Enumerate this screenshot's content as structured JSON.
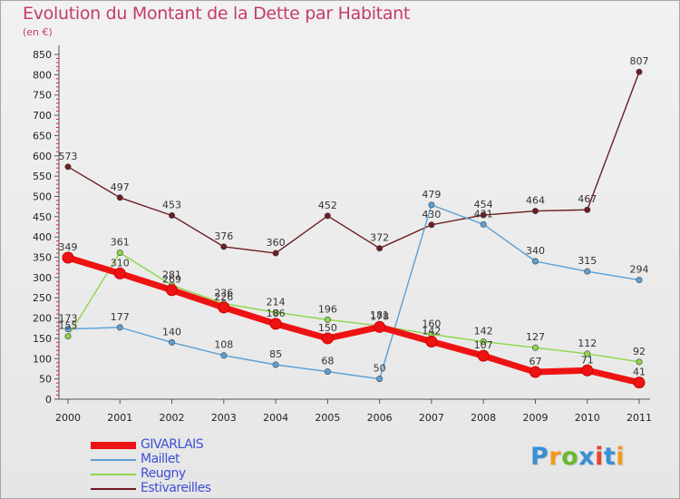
{
  "title": "Evolution du Montant de la Dette par Habitant",
  "subtitle": "(en €)",
  "logo": {
    "text": "Proxiti",
    "letter_colors": [
      "#3a8fd4",
      "#f29a1f",
      "#6cb830",
      "#3a8fd4",
      "#e8432e",
      "#3a8fd4",
      "#f29a1f"
    ]
  },
  "chart_data": {
    "type": "line",
    "x": [
      "2000",
      "2001",
      "2002",
      "2003",
      "2004",
      "2005",
      "2006",
      "2007",
      "2008",
      "2009",
      "2010",
      "2011"
    ],
    "ylim": [
      0,
      850
    ],
    "yticks": [
      0,
      50,
      100,
      150,
      200,
      250,
      300,
      350,
      400,
      450,
      500,
      550,
      600,
      650,
      700,
      750,
      800,
      850
    ],
    "grid": false,
    "legend_position": "bottom-left",
    "series": [
      {
        "name": "Estivareilles",
        "color": "#6e1d22",
        "values": [
          573,
          497,
          453,
          376,
          360,
          452,
          372,
          430,
          454,
          464,
          467,
          807
        ]
      },
      {
        "name": "Maillet",
        "color": "#5aa0d6",
        "values": [
          173,
          177,
          140,
          108,
          85,
          68,
          50,
          479,
          431,
          340,
          315,
          294
        ]
      },
      {
        "name": "Reugny",
        "color": "#8ed64b",
        "values": [
          155,
          361,
          281,
          236,
          214,
          196,
          181,
          160,
          142,
          127,
          112,
          92
        ]
      },
      {
        "name": "GIVARLAIS",
        "color": "#ee1313",
        "values": [
          349,
          310,
          269,
          226,
          186,
          150,
          178,
          142,
          107,
          67,
          71,
          41
        ]
      }
    ]
  }
}
